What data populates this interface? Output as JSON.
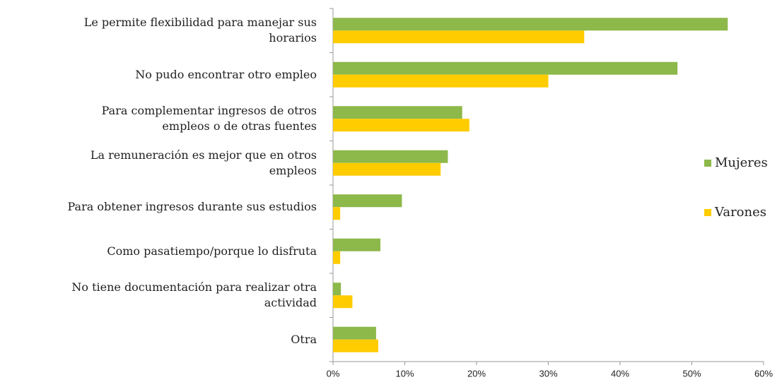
{
  "chart_data": {
    "type": "bar",
    "orientation": "horizontal",
    "categories": [
      "Le permite flexibilidad para manejar sus\nhorarios",
      "No pudo encontrar otro empleo",
      "Para complementar ingresos de otros\nempleos o de otras fuentes",
      "La remuneración es mejor que en otros\nempleos",
      "Para obtener ingresos durante sus estudios",
      "Como pasatiempo/porque lo disfruta",
      "No tiene documentación para realizar otra\nactividad",
      "Otra"
    ],
    "series": [
      {
        "name": "Mujeres",
        "color": "#8db84a",
        "values": [
          55,
          48,
          18,
          16,
          9.6,
          6.6,
          1.1,
          6
        ]
      },
      {
        "name": "Varones",
        "color": "#ffcc00",
        "values": [
          35,
          30,
          19,
          15,
          1,
          1,
          2.7,
          6.3
        ]
      }
    ],
    "xlim": [
      0,
      60
    ],
    "xticks": [
      {
        "value": 0,
        "label": "0%"
      },
      {
        "value": 10,
        "label": "10%"
      },
      {
        "value": 20,
        "label": "20%"
      },
      {
        "value": 30,
        "label": "30%"
      },
      {
        "value": 40,
        "label": "40%"
      },
      {
        "value": 50,
        "label": "50%"
      },
      {
        "value": 60,
        "label": "60%"
      }
    ],
    "legend": "right"
  }
}
